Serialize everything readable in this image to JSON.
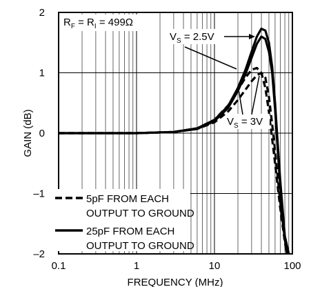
{
  "chart_data": {
    "type": "line",
    "xlabel": "FREQUENCY (MHz)",
    "ylabel": "GAIN (dB)",
    "x_scale": "log",
    "xlim": [
      0.1,
      100
    ],
    "ylim": [
      -2,
      2
    ],
    "x_ticks": [
      0.1,
      1,
      10,
      100
    ],
    "x_tick_labels": [
      "0.1",
      "1",
      "10",
      "100"
    ],
    "y_ticks": [
      -2,
      -1,
      0,
      1,
      2
    ],
    "y_tick_labels": [
      "–2",
      "–1",
      "0",
      "1",
      "2"
    ],
    "grid": true,
    "annotations": {
      "condition": {
        "main": "R",
        "sub1": "F",
        "mid": " = R",
        "sub2": "I",
        "tail": " = 499Ω"
      },
      "vs_high": {
        "main": "V",
        "sub": "S",
        "tail": " = 2.5V"
      },
      "vs_low": {
        "main": "V",
        "sub": "S",
        "tail": " = 3V"
      }
    },
    "legend": {
      "placement": "bottom-left",
      "entries": [
        {
          "style": "dashed",
          "line1": "5pF FROM EACH",
          "line2": "OUTPUT TO GROUND"
        },
        {
          "style": "solid",
          "line1": "25pF FROM EACH",
          "line2": "OUTPUT TO GROUND"
        }
      ]
    },
    "series": [
      {
        "style": "solid",
        "x": [
          0.1,
          1,
          3,
          6,
          10,
          15,
          20,
          25,
          30,
          35,
          40,
          45,
          50,
          55,
          60,
          65,
          70,
          80,
          90
        ],
        "y": [
          0,
          0,
          0.02,
          0.08,
          0.22,
          0.45,
          0.75,
          1.05,
          1.35,
          1.6,
          1.73,
          1.7,
          1.5,
          1.1,
          0.5,
          -0.2,
          -0.8,
          -1.7,
          -2.0
        ]
      },
      {
        "style": "solid",
        "x": [
          0.1,
          1,
          3,
          6,
          10,
          15,
          20,
          25,
          30,
          35,
          40,
          45,
          50,
          55,
          60,
          65,
          70,
          80,
          90
        ],
        "y": [
          0,
          0,
          0.02,
          0.07,
          0.2,
          0.42,
          0.7,
          0.98,
          1.25,
          1.48,
          1.6,
          1.56,
          1.35,
          1.0,
          0.4,
          -0.3,
          -0.9,
          -1.75,
          -2.0
        ]
      },
      {
        "style": "dashed",
        "x": [
          0.1,
          1,
          3,
          6,
          10,
          15,
          20,
          25,
          30,
          35,
          40,
          45,
          50,
          55,
          60,
          65,
          70,
          80,
          85
        ],
        "y": [
          0,
          0,
          0.02,
          0.08,
          0.22,
          0.46,
          0.72,
          0.92,
          1.05,
          1.08,
          1.0,
          0.75,
          0.35,
          -0.1,
          -0.5,
          -0.9,
          -1.25,
          -1.8,
          -2.0
        ]
      },
      {
        "style": "dashed",
        "x": [
          0.1,
          1,
          3,
          6,
          10,
          15,
          20,
          25,
          30,
          35,
          40,
          45,
          50,
          55,
          60,
          65,
          70,
          80,
          85
        ],
        "y": [
          0,
          0,
          0.02,
          0.07,
          0.18,
          0.36,
          0.55,
          0.72,
          0.86,
          0.96,
          1.0,
          0.92,
          0.6,
          0.15,
          -0.3,
          -0.75,
          -1.15,
          -1.75,
          -2.0
        ]
      }
    ]
  }
}
